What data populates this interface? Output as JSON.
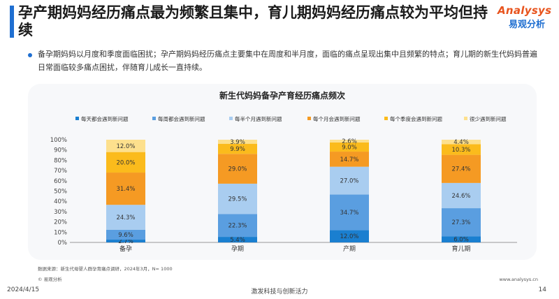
{
  "page": {
    "title": "孕产期妈妈经历痛点最为频繁且集中，育儿期妈妈经历痛点较为平均但持续",
    "logo_top": "Analysys",
    "logo_bottom": "易观分析",
    "bullet": "备孕期妈妈以月度和季度面临困扰；孕产期妈妈经历痛点主要集中在周度和半月度，面临的痛点呈现出集中且频繁的特点；育儿期的新生代妈妈普遍日常面临较多痛点困扰，伴随育儿成长一直持续。",
    "source": "数据来源：新生代母婴人群孕育痛点调研，2024年3月，N= 1000",
    "copyright": "© 易观分析",
    "website": "www.analysys.cn",
    "date": "2024/4/15",
    "slogan": "激发科技与创新活力",
    "page_number": "14"
  },
  "colors": {
    "accent": "#1f6fd1",
    "logo_orange": "#e8541e",
    "logo_blue": "#1f6fd1"
  },
  "chart_data": {
    "type": "bar",
    "stacked": true,
    "title": "新生代妈妈备孕产育经历痛点频次",
    "categories": [
      "备孕",
      "孕期",
      "产期",
      "育儿期"
    ],
    "yticks": [
      "0%",
      "10%",
      "20%",
      "30%",
      "40%",
      "50%",
      "60%",
      "70%",
      "80%",
      "90%",
      "100%"
    ],
    "ylim": [
      0,
      100
    ],
    "legend_position": "top",
    "series": [
      {
        "name": "每天都会遇到新问题",
        "color": "#1a7fd0",
        "values": [
          2.7,
          5.4,
          12.0,
          6.0
        ],
        "labels": [
          "2.7%",
          "5.4%",
          "12.0%",
          "6.0%"
        ]
      },
      {
        "name": "每周都会遇到新问题",
        "color": "#5a9ee0",
        "values": [
          9.6,
          22.3,
          34.7,
          27.3
        ],
        "labels": [
          "9.6%",
          "22.3%",
          "34.7%",
          "27.3%"
        ]
      },
      {
        "name": "每半个月遇到新问题",
        "color": "#a9cdf0",
        "values": [
          24.3,
          29.5,
          27.0,
          24.6
        ],
        "labels": [
          "24.3%",
          "29.5%",
          "27.0%",
          "24.6%"
        ]
      },
      {
        "name": "每个月会遇到新问题",
        "color": "#f59a23",
        "values": [
          31.4,
          29.0,
          14.7,
          27.4
        ],
        "labels": [
          "31.4%",
          "29.0%",
          "14.7%",
          "27.4%"
        ]
      },
      {
        "name": "每个季度会遇到新问题",
        "color": "#fbbb1c",
        "values": [
          20.0,
          9.9,
          9.0,
          10.3
        ],
        "labels": [
          "20.0%",
          "9.9%",
          "9.0%",
          "10.3%"
        ]
      },
      {
        "name": "很少遇到新问题",
        "color": "#fde08d",
        "values": [
          12.0,
          3.9,
          2.6,
          4.4
        ],
        "labels": [
          "12.0%",
          "3.9%",
          "2.6%",
          "4.4%"
        ]
      }
    ]
  }
}
